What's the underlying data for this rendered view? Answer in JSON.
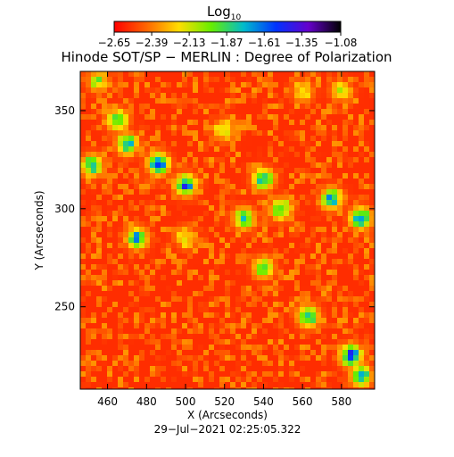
{
  "chart_data": {
    "type": "heatmap",
    "title": "Hinode SOT/SP − MERLIN : Degree of Polarization",
    "xlabel": "X (Arcseconds)",
    "ylabel": "Y (Arcseconds)",
    "timestamp": "29−Jul−2021 02:25:05.322",
    "colorbar": {
      "label_main": "Log",
      "label_sub": "10",
      "tick_labels": [
        "−2.65",
        "−2.39",
        "−2.13",
        "−1.87",
        "−1.61",
        "−1.35",
        "−1.08"
      ],
      "tick_values": [
        -2.65,
        -2.39,
        -2.13,
        -1.87,
        -1.61,
        -1.35,
        -1.08
      ],
      "range": [
        -2.65,
        -1.08
      ],
      "colormap": [
        "#ff0000",
        "#ff6600",
        "#ffdd00",
        "#66ee00",
        "#00bbcc",
        "#0033ff",
        "#6600cc",
        "#000000"
      ]
    },
    "x_ticks": [
      460,
      480,
      500,
      520,
      540,
      560,
      580
    ],
    "x_tick_labels": [
      "460",
      "480",
      "500",
      "520",
      "540",
      "560",
      "580"
    ],
    "y_ticks": [
      250,
      300,
      350
    ],
    "y_tick_labels": [
      "250",
      "300",
      "350"
    ],
    "xlim": [
      446,
      597
    ],
    "ylim": [
      208,
      370
    ],
    "background_level": -2.55,
    "enhanced_regions": [
      {
        "x": 486,
        "y": 323,
        "level": -1.5
      },
      {
        "x": 470,
        "y": 333,
        "level": -1.7
      },
      {
        "x": 500,
        "y": 312,
        "level": -1.6
      },
      {
        "x": 465,
        "y": 345,
        "level": -1.8
      },
      {
        "x": 475,
        "y": 285,
        "level": -1.7
      },
      {
        "x": 452,
        "y": 322,
        "level": -1.7
      },
      {
        "x": 540,
        "y": 315,
        "level": -1.7
      },
      {
        "x": 549,
        "y": 300,
        "level": -1.8
      },
      {
        "x": 575,
        "y": 305,
        "level": -1.7
      },
      {
        "x": 590,
        "y": 295,
        "level": -1.6
      },
      {
        "x": 530,
        "y": 295,
        "level": -1.8
      },
      {
        "x": 563,
        "y": 245,
        "level": -1.7
      },
      {
        "x": 585,
        "y": 225,
        "level": -1.5
      },
      {
        "x": 590,
        "y": 215,
        "level": -1.7
      },
      {
        "x": 540,
        "y": 270,
        "level": -1.9
      },
      {
        "x": 520,
        "y": 340,
        "level": -2.0
      },
      {
        "x": 560,
        "y": 360,
        "level": -2.1
      },
      {
        "x": 580,
        "y": 360,
        "level": -2.1
      },
      {
        "x": 455,
        "y": 365,
        "level": -2.0
      },
      {
        "x": 500,
        "y": 285,
        "level": -2.1
      }
    ]
  }
}
